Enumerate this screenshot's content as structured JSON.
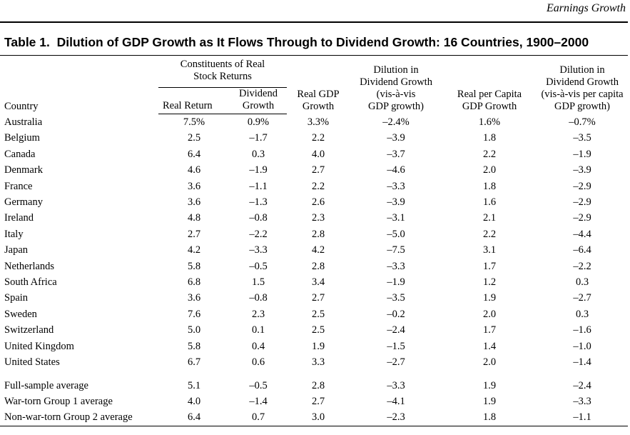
{
  "header": {
    "running_title": "Earnings Growth"
  },
  "table": {
    "title": "Table 1.  Dilution of GDP Growth as It Flows Through to Dividend Growth: 16 Countries, 1900–2000",
    "group_header": [
      "Constituents of Real",
      "Stock Returns"
    ],
    "columns": [
      [
        "Country"
      ],
      [
        "Real Return"
      ],
      [
        "Dividend",
        "Growth"
      ],
      [
        "Real GDP",
        "Growth"
      ],
      [
        "Dilution in",
        "Dividend Growth",
        "(vis-à-vis",
        "GDP growth)"
      ],
      [
        "Real per Capita",
        "GDP Growth"
      ],
      [
        "Dilution in",
        "Dividend Growth",
        "(vis-à-vis per capita",
        "GDP growth)"
      ]
    ],
    "rows": [
      [
        "Australia",
        "7.5%",
        "0.9%",
        "3.3%",
        "–2.4%",
        "1.6%",
        "–0.7%"
      ],
      [
        "Belgium",
        "2.5",
        "–1.7",
        "2.2",
        "–3.9",
        "1.8",
        "–3.5"
      ],
      [
        "Canada",
        "6.4",
        "0.3",
        "4.0",
        "–3.7",
        "2.2",
        "–1.9"
      ],
      [
        "Denmark",
        "4.6",
        "–1.9",
        "2.7",
        "–4.6",
        "2.0",
        "–3.9"
      ],
      [
        "France",
        "3.6",
        "–1.1",
        "2.2",
        "–3.3",
        "1.8",
        "–2.9"
      ],
      [
        "Germany",
        "3.6",
        "–1.3",
        "2.6",
        "–3.9",
        "1.6",
        "–2.9"
      ],
      [
        "Ireland",
        "4.8",
        "–0.8",
        "2.3",
        "–3.1",
        "2.1",
        "–2.9"
      ],
      [
        "Italy",
        "2.7",
        "–2.2",
        "2.8",
        "–5.0",
        "2.2",
        "–4.4"
      ],
      [
        "Japan",
        "4.2",
        "–3.3",
        "4.2",
        "–7.5",
        "3.1",
        "–6.4"
      ],
      [
        "Netherlands",
        "5.8",
        "–0.5",
        "2.8",
        "–3.3",
        "1.7",
        "–2.2"
      ],
      [
        "South Africa",
        "6.8",
        "1.5",
        "3.4",
        "–1.9",
        "1.2",
        "0.3"
      ],
      [
        "Spain",
        "3.6",
        "–0.8",
        "2.7",
        "–3.5",
        "1.9",
        "–2.7"
      ],
      [
        "Sweden",
        "7.6",
        "2.3",
        "2.5",
        "–0.2",
        "2.0",
        "0.3"
      ],
      [
        "Switzerland",
        "5.0",
        "0.1",
        "2.5",
        "–2.4",
        "1.7",
        "–1.6"
      ],
      [
        "United Kingdom",
        "5.8",
        "0.4",
        "1.9",
        "–1.5",
        "1.4",
        "–1.0"
      ],
      [
        "United States",
        "6.7",
        "0.6",
        "3.3",
        "–2.7",
        "2.0",
        "–1.4"
      ]
    ],
    "summary_rows": [
      [
        "Full-sample average",
        "5.1",
        "–0.5",
        "2.8",
        "–3.3",
        "1.9",
        "–2.4"
      ],
      [
        "War-torn Group 1 average",
        "4.0",
        "–1.4",
        "2.7",
        "–4.1",
        "1.9",
        "–3.3"
      ],
      [
        "Non-war-torn Group 2 average",
        "6.4",
        "0.7",
        "3.0",
        "–2.3",
        "1.8",
        "–1.1"
      ]
    ]
  }
}
